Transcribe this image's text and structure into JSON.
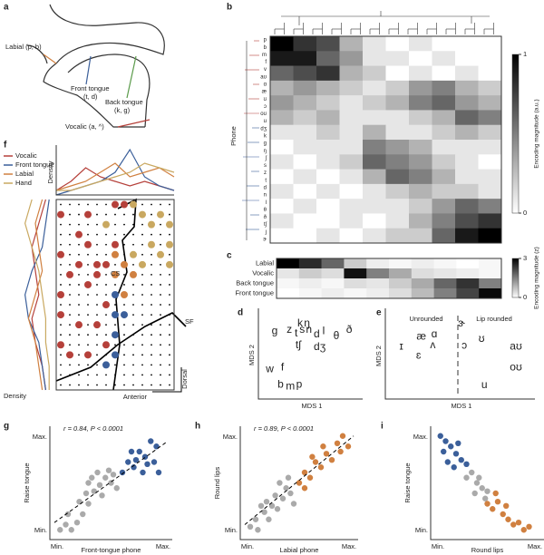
{
  "a": {
    "label": "a",
    "labial": "Labial (p, b)",
    "front": "Front tongue",
    "front_ex": "(t, d)",
    "back": "Back tongue",
    "back_ex": "(k, g)",
    "vocalic": "Vocalic (a, ^)"
  },
  "b": {
    "label": "b",
    "axis": "Phone",
    "colorbar_label": "Encoding magnitude (a.u.)",
    "colorbar_ticks": [
      0,
      1
    ],
    "phones": [
      "p",
      "b",
      "m",
      "f",
      "v",
      "aʊ",
      "ɑ",
      "æ",
      "ʊ",
      "ɔ",
      "oʊ",
      "u",
      "dʒ",
      "k",
      "g",
      "ŋ",
      "ʃ",
      "s",
      "z",
      "t",
      "d",
      "n",
      "l",
      "θ",
      "ð",
      "tʃ",
      "j",
      "ɝ"
    ],
    "matrix": [
      [
        1.0,
        0.8,
        0.7,
        0.3,
        0.1,
        0.0,
        0.1,
        0.0,
        0.0,
        0.0
      ],
      [
        0.9,
        0.9,
        0.6,
        0.4,
        0.1,
        0.1,
        0.0,
        0.1,
        0.0,
        0.0
      ],
      [
        0.6,
        0.7,
        0.8,
        0.3,
        0.2,
        0.0,
        0.1,
        0.0,
        0.1,
        0.0
      ],
      [
        0.3,
        0.4,
        0.3,
        0.2,
        0.1,
        0.2,
        0.4,
        0.5,
        0.3,
        0.2
      ],
      [
        0.4,
        0.3,
        0.2,
        0.1,
        0.2,
        0.3,
        0.5,
        0.6,
        0.4,
        0.3
      ],
      [
        0.3,
        0.2,
        0.3,
        0.1,
        0.1,
        0.1,
        0.2,
        0.3,
        0.6,
        0.5
      ],
      [
        0.1,
        0.1,
        0.2,
        0.1,
        0.3,
        0.1,
        0.1,
        0.2,
        0.3,
        0.2
      ],
      [
        0.0,
        0.1,
        0.1,
        0.1,
        0.5,
        0.4,
        0.3,
        0.1,
        0.1,
        0.1
      ],
      [
        0.1,
        0.0,
        0.1,
        0.2,
        0.6,
        0.5,
        0.4,
        0.2,
        0.1,
        0.0
      ],
      [
        0.0,
        0.1,
        0.0,
        0.1,
        0.3,
        0.6,
        0.5,
        0.3,
        0.1,
        0.1
      ],
      [
        0.1,
        0.0,
        0.1,
        0.0,
        0.1,
        0.2,
        0.3,
        0.2,
        0.2,
        0.1
      ],
      [
        0.0,
        0.1,
        0.0,
        0.1,
        0.1,
        0.1,
        0.2,
        0.4,
        0.6,
        0.5
      ],
      [
        0.1,
        0.0,
        0.0,
        0.1,
        0.0,
        0.1,
        0.3,
        0.5,
        0.7,
        0.8
      ],
      [
        0.0,
        0.0,
        0.1,
        0.0,
        0.1,
        0.2,
        0.2,
        0.6,
        0.9,
        1.0
      ]
    ]
  },
  "c": {
    "label": "c",
    "rows": [
      "Labial",
      "Vocalic",
      "Back tongue",
      "Front tongue"
    ],
    "colorbar_label": "Encoding magnitude (z)",
    "colorbar_ticks": [
      0,
      3
    ],
    "matrix": [
      [
        3.0,
        2.5,
        1.8,
        0.6,
        0.2,
        0.1,
        0.2,
        0.1,
        0.0,
        0.1
      ],
      [
        0.3,
        0.6,
        0.4,
        2.8,
        1.5,
        1.0,
        0.4,
        0.3,
        0.2,
        0.1
      ],
      [
        0.1,
        0.2,
        0.1,
        0.4,
        0.3,
        0.6,
        1.0,
        1.8,
        2.4,
        1.5
      ],
      [
        0.0,
        0.1,
        0.2,
        0.1,
        0.2,
        0.4,
        0.8,
        1.5,
        2.2,
        2.9
      ]
    ]
  },
  "d": {
    "label": "d",
    "xlabel": "MDS 1",
    "ylabel": "MDS 2",
    "points": [
      {
        "t": "g",
        "x": 0.12,
        "y": 0.8,
        "color": "#5a9a4a"
      },
      {
        "t": "z",
        "x": 0.27,
        "y": 0.82,
        "color": "#3b5f9a"
      },
      {
        "t": "k",
        "x": 0.38,
        "y": 0.9,
        "color": "#5a9a4a"
      },
      {
        "t": "ŋ",
        "x": 0.45,
        "y": 0.9,
        "color": "#5a9a4a"
      },
      {
        "t": "s",
        "x": 0.4,
        "y": 0.82,
        "color": "#3b5f9a"
      },
      {
        "t": "n",
        "x": 0.47,
        "y": 0.82,
        "color": "#3b5f9a"
      },
      {
        "t": "t",
        "x": 0.34,
        "y": 0.77,
        "color": "#3b5f9a"
      },
      {
        "t": "d",
        "x": 0.55,
        "y": 0.76,
        "color": "#3b5f9a"
      },
      {
        "t": "l",
        "x": 0.62,
        "y": 0.8,
        "color": "#3b5f9a"
      },
      {
        "t": "θ",
        "x": 0.75,
        "y": 0.74,
        "color": "#3b5f9a"
      },
      {
        "t": "ð",
        "x": 0.88,
        "y": 0.82,
        "color": "#3b5f9a"
      },
      {
        "t": "tʃ",
        "x": 0.36,
        "y": 0.62,
        "color": "#3b5f9a"
      },
      {
        "t": "dʒ",
        "x": 0.58,
        "y": 0.6,
        "color": "#3b5f9a"
      },
      {
        "t": "w",
        "x": 0.07,
        "y": 0.32,
        "color": "#d08040"
      },
      {
        "t": "f",
        "x": 0.2,
        "y": 0.34,
        "color": "#d08040"
      },
      {
        "t": "b",
        "x": 0.18,
        "y": 0.12,
        "color": "#d08040"
      },
      {
        "t": "m",
        "x": 0.28,
        "y": 0.1,
        "color": "#d08040"
      },
      {
        "t": "p",
        "x": 0.37,
        "y": 0.12,
        "color": "#d08040"
      }
    ]
  },
  "e": {
    "label": "e",
    "xlabel": "MDS 1",
    "ylabel": "MDS 2",
    "left": "Unrounded",
    "right": "Lip rounded",
    "points": [
      {
        "t": "ɝ",
        "x": 0.5,
        "y": 0.92
      },
      {
        "t": "æ",
        "x": 0.22,
        "y": 0.75
      },
      {
        "t": "ɑ",
        "x": 0.31,
        "y": 0.78
      },
      {
        "t": "ɪ",
        "x": 0.08,
        "y": 0.62
      },
      {
        "t": "ʌ",
        "x": 0.3,
        "y": 0.64
      },
      {
        "t": "ɛ",
        "x": 0.2,
        "y": 0.5
      },
      {
        "t": "ɔ",
        "x": 0.52,
        "y": 0.63
      },
      {
        "t": "ʊ",
        "x": 0.64,
        "y": 0.72
      },
      {
        "t": "aʊ",
        "x": 0.88,
        "y": 0.62
      },
      {
        "t": "oʊ",
        "x": 0.88,
        "y": 0.35
      },
      {
        "t": "u",
        "x": 0.66,
        "y": 0.12
      }
    ],
    "color": "#a33a34"
  },
  "f": {
    "label": "f",
    "density": "Density",
    "cs": "CS",
    "sf": "SF",
    "dorsal": "Dorsal",
    "anterior": "Anterior",
    "legend": [
      {
        "name": "Vocalic",
        "color": "#b5403a"
      },
      {
        "name": "Front tongue",
        "color": "#3b5f9a"
      },
      {
        "name": "Labial",
        "color": "#d08040"
      },
      {
        "name": "Hand",
        "color": "#c9a860"
      }
    ],
    "top_density": [
      [
        0.1,
        0.3,
        0.6,
        0.4,
        0.3,
        0.2,
        0.3,
        0.2,
        0.1
      ],
      [
        0.0,
        0.1,
        0.2,
        0.3,
        0.5,
        1.0,
        0.4,
        0.2,
        0.1
      ],
      [
        0.1,
        0.2,
        0.3,
        0.5,
        0.7,
        0.4,
        0.5,
        0.6,
        0.4
      ],
      [
        0.1,
        0.1,
        0.2,
        0.3,
        0.4,
        0.5,
        0.7,
        0.6,
        0.5
      ]
    ],
    "side_density": [
      [
        0.2,
        0.4,
        0.6,
        0.5,
        0.4,
        0.6,
        0.5,
        0.3,
        0.2
      ],
      [
        0.1,
        0.2,
        0.3,
        0.6,
        0.8,
        0.7,
        0.4,
        0.3,
        0.2
      ],
      [
        0.3,
        0.5,
        0.4,
        0.3,
        0.5,
        0.7,
        0.5,
        0.4,
        0.3
      ],
      [
        0.6,
        0.8,
        0.6,
        0.4,
        0.3,
        0.2,
        0.2,
        0.1,
        0.1
      ]
    ],
    "electrodes": [
      [
        0,
        1,
        0
      ],
      [
        3,
        1,
        0
      ],
      [
        6,
        0,
        0
      ],
      [
        7,
        0,
        0
      ],
      [
        8,
        0,
        3
      ],
      [
        9,
        1,
        3
      ],
      [
        11,
        1,
        3
      ],
      [
        5,
        2,
        3
      ],
      [
        10,
        2,
        3
      ],
      [
        2,
        3,
        0
      ],
      [
        12,
        2,
        3
      ],
      [
        3,
        4,
        0
      ],
      [
        6,
        4,
        0
      ],
      [
        10,
        4,
        3
      ],
      [
        11,
        5,
        3
      ],
      [
        12,
        4,
        3
      ],
      [
        0,
        5,
        0
      ],
      [
        2,
        6,
        0
      ],
      [
        4,
        6,
        0
      ],
      [
        5,
        6,
        0
      ],
      [
        6,
        5,
        2
      ],
      [
        7,
        6,
        2
      ],
      [
        8,
        5,
        3
      ],
      [
        9,
        6,
        3
      ],
      [
        12,
        6,
        3
      ],
      [
        1,
        7,
        0
      ],
      [
        4,
        7,
        0
      ],
      [
        6,
        7,
        2
      ],
      [
        8,
        7,
        2
      ],
      [
        0,
        9,
        0
      ],
      [
        3,
        8,
        0
      ],
      [
        6,
        9,
        1
      ],
      [
        7,
        9,
        2
      ],
      [
        5,
        10,
        0
      ],
      [
        6,
        11,
        1
      ],
      [
        7,
        11,
        1
      ],
      [
        4,
        12,
        0
      ],
      [
        6,
        13,
        1
      ],
      [
        0,
        11,
        0
      ],
      [
        2,
        12,
        0
      ],
      [
        6,
        15,
        1
      ],
      [
        3,
        15,
        0
      ],
      [
        5,
        14,
        0
      ],
      [
        0,
        14,
        0
      ],
      [
        1,
        15,
        0
      ],
      [
        5,
        16,
        1
      ]
    ]
  },
  "g": {
    "label": "g",
    "stat": "r = 0.84, P < 0.0001",
    "ylabel": "Raise tongue",
    "xlabel": "Front-tongue phone",
    "min": "Min.",
    "max": "Max.",
    "groups": [
      {
        "color": "#aaaaaa",
        "points": [
          [
            0.05,
            0.05
          ],
          [
            0.1,
            0.1
          ],
          [
            0.15,
            0.05
          ],
          [
            0.2,
            0.12
          ],
          [
            0.12,
            0.2
          ],
          [
            0.25,
            0.2
          ],
          [
            0.3,
            0.3
          ],
          [
            0.22,
            0.32
          ],
          [
            0.35,
            0.42
          ],
          [
            0.3,
            0.5
          ],
          [
            0.4,
            0.48
          ],
          [
            0.45,
            0.55
          ],
          [
            0.38,
            0.6
          ],
          [
            0.5,
            0.5
          ],
          [
            0.48,
            0.62
          ],
          [
            0.55,
            0.45
          ],
          [
            0.42,
            0.38
          ],
          [
            0.28,
            0.4
          ],
          [
            0.52,
            0.58
          ],
          [
            0.33,
            0.55
          ]
        ]
      },
      {
        "color": "#3b5f9a",
        "points": [
          [
            0.6,
            0.6
          ],
          [
            0.65,
            0.7
          ],
          [
            0.7,
            0.65
          ],
          [
            0.75,
            0.8
          ],
          [
            0.8,
            0.75
          ],
          [
            0.85,
            0.9
          ],
          [
            0.9,
            0.85
          ],
          [
            0.78,
            0.6
          ],
          [
            0.82,
            0.68
          ],
          [
            0.88,
            0.7
          ],
          [
            0.72,
            0.72
          ],
          [
            0.92,
            0.6
          ],
          [
            0.68,
            0.8
          ]
        ]
      }
    ],
    "fit": [
      [
        0,
        0.12
      ],
      [
        1,
        0.9
      ]
    ]
  },
  "h": {
    "label": "h",
    "stat": "r = 0.89, P < 0.0001",
    "ylabel": "Round lips",
    "xlabel": "Labial phone",
    "min": "Min.",
    "max": "Max.",
    "groups": [
      {
        "color": "#aaaaaa",
        "points": [
          [
            0.05,
            0.08
          ],
          [
            0.1,
            0.15
          ],
          [
            0.12,
            0.05
          ],
          [
            0.18,
            0.22
          ],
          [
            0.22,
            0.15
          ],
          [
            0.25,
            0.28
          ],
          [
            0.3,
            0.25
          ],
          [
            0.28,
            0.38
          ],
          [
            0.35,
            0.35
          ],
          [
            0.38,
            0.45
          ],
          [
            0.42,
            0.4
          ],
          [
            0.32,
            0.5
          ],
          [
            0.45,
            0.3
          ],
          [
            0.2,
            0.32
          ],
          [
            0.15,
            0.28
          ],
          [
            0.4,
            0.55
          ]
        ]
      },
      {
        "color": "#d08040",
        "points": [
          [
            0.5,
            0.5
          ],
          [
            0.55,
            0.6
          ],
          [
            0.6,
            0.55
          ],
          [
            0.65,
            0.7
          ],
          [
            0.7,
            0.65
          ],
          [
            0.75,
            0.78
          ],
          [
            0.8,
            0.72
          ],
          [
            0.85,
            0.88
          ],
          [
            0.9,
            0.95
          ],
          [
            0.72,
            0.85
          ],
          [
            0.62,
            0.75
          ],
          [
            0.88,
            0.8
          ],
          [
            0.55,
            0.45
          ],
          [
            0.95,
            0.85
          ]
        ]
      }
    ],
    "fit": [
      [
        0,
        0.1
      ],
      [
        1,
        0.95
      ]
    ]
  },
  "i": {
    "label": "i",
    "ylabel": "Raise tongue",
    "xlabel": "Round lips",
    "min": "Min.",
    "max": "Max.",
    "groups": [
      {
        "color": "#3b5f9a",
        "points": [
          [
            0.05,
            0.95
          ],
          [
            0.1,
            0.9
          ],
          [
            0.15,
            0.85
          ],
          [
            0.08,
            0.8
          ],
          [
            0.2,
            0.78
          ],
          [
            0.25,
            0.72
          ],
          [
            0.12,
            0.7
          ],
          [
            0.18,
            0.65
          ],
          [
            0.3,
            0.68
          ],
          [
            0.22,
            0.88
          ]
        ]
      },
      {
        "color": "#aaaaaa",
        "points": [
          [
            0.3,
            0.55
          ],
          [
            0.35,
            0.6
          ],
          [
            0.4,
            0.5
          ],
          [
            0.45,
            0.45
          ],
          [
            0.38,
            0.4
          ],
          [
            0.5,
            0.42
          ],
          [
            0.42,
            0.55
          ],
          [
            0.48,
            0.35
          ]
        ]
      },
      {
        "color": "#d08040",
        "points": [
          [
            0.5,
            0.3
          ],
          [
            0.55,
            0.25
          ],
          [
            0.6,
            0.32
          ],
          [
            0.65,
            0.2
          ],
          [
            0.7,
            0.15
          ],
          [
            0.75,
            0.1
          ],
          [
            0.8,
            0.12
          ],
          [
            0.85,
            0.05
          ],
          [
            0.9,
            0.08
          ],
          [
            0.58,
            0.4
          ],
          [
            0.68,
            0.28
          ]
        ]
      }
    ]
  }
}
